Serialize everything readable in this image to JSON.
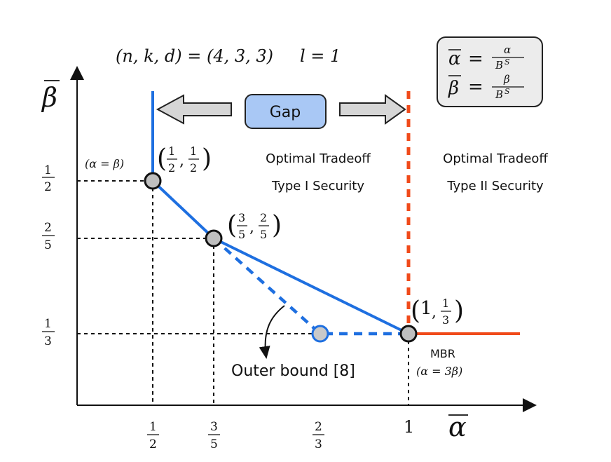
{
  "title": {
    "params": "(n, k, d) = (4, 3, 3)",
    "l": "l = 1"
  },
  "legend_box": {
    "alpha_def": {
      "lhs": "α",
      "num": "α",
      "den": "B",
      "den_sup": "S"
    },
    "beta_def": {
      "lhs": "β",
      "num": "β",
      "den": "B",
      "den_sup": "S"
    }
  },
  "axes": {
    "x_label": "α",
    "y_label": "β",
    "x_ticks": [
      {
        "label": "1/2",
        "num": "1",
        "den": "2",
        "value": 0.5
      },
      {
        "label": "3/5",
        "num": "3",
        "den": "5",
        "value": 0.6
      },
      {
        "label": "2/3",
        "num": "2",
        "den": "3",
        "value": 0.6667
      },
      {
        "label": "1",
        "num": "1",
        "den": "",
        "value": 1.0
      }
    ],
    "y_ticks": [
      {
        "label": "1/2",
        "num": "1",
        "den": "2",
        "value": 0.5
      },
      {
        "label": "2/5",
        "num": "2",
        "den": "5",
        "value": 0.4
      },
      {
        "label": "1/3",
        "num": "1",
        "den": "3",
        "value": 0.3333
      }
    ]
  },
  "gap_label": "Gap",
  "regions": {
    "type1": {
      "line1": "Optimal Tradeoff",
      "line2": "Type I Security"
    },
    "type2": {
      "line1": "Optimal Tradeoff",
      "line2": "Type II Security"
    }
  },
  "points": {
    "p_half": {
      "x": 0.5,
      "y": 0.5,
      "num1": "1",
      "den1": "2",
      "num2": "1",
      "den2": "2",
      "note": "(α = β)"
    },
    "p_35": {
      "x": 0.6,
      "y": 0.4,
      "num1": "3",
      "den1": "5",
      "num2": "2",
      "den2": "5"
    },
    "p_outer": {
      "x": 0.6667,
      "y": 0.3333
    },
    "p_mbr": {
      "x": 1.0,
      "y": 0.3333,
      "coord_a": "1",
      "num2": "1",
      "den2": "3",
      "label": "MBR",
      "note": "(α = 3β)"
    }
  },
  "outer_bound_label": "Outer bound [8]",
  "colors": {
    "blue": "#1e6fe0",
    "red": "#f04a1a",
    "gap_fill": "#a9c8f5",
    "point_fill": "#bfbfbf",
    "outer_point_fill": "#c9c9c9",
    "arrow_fill": "#d6d6d6",
    "legend_fill": "#ececec"
  }
}
